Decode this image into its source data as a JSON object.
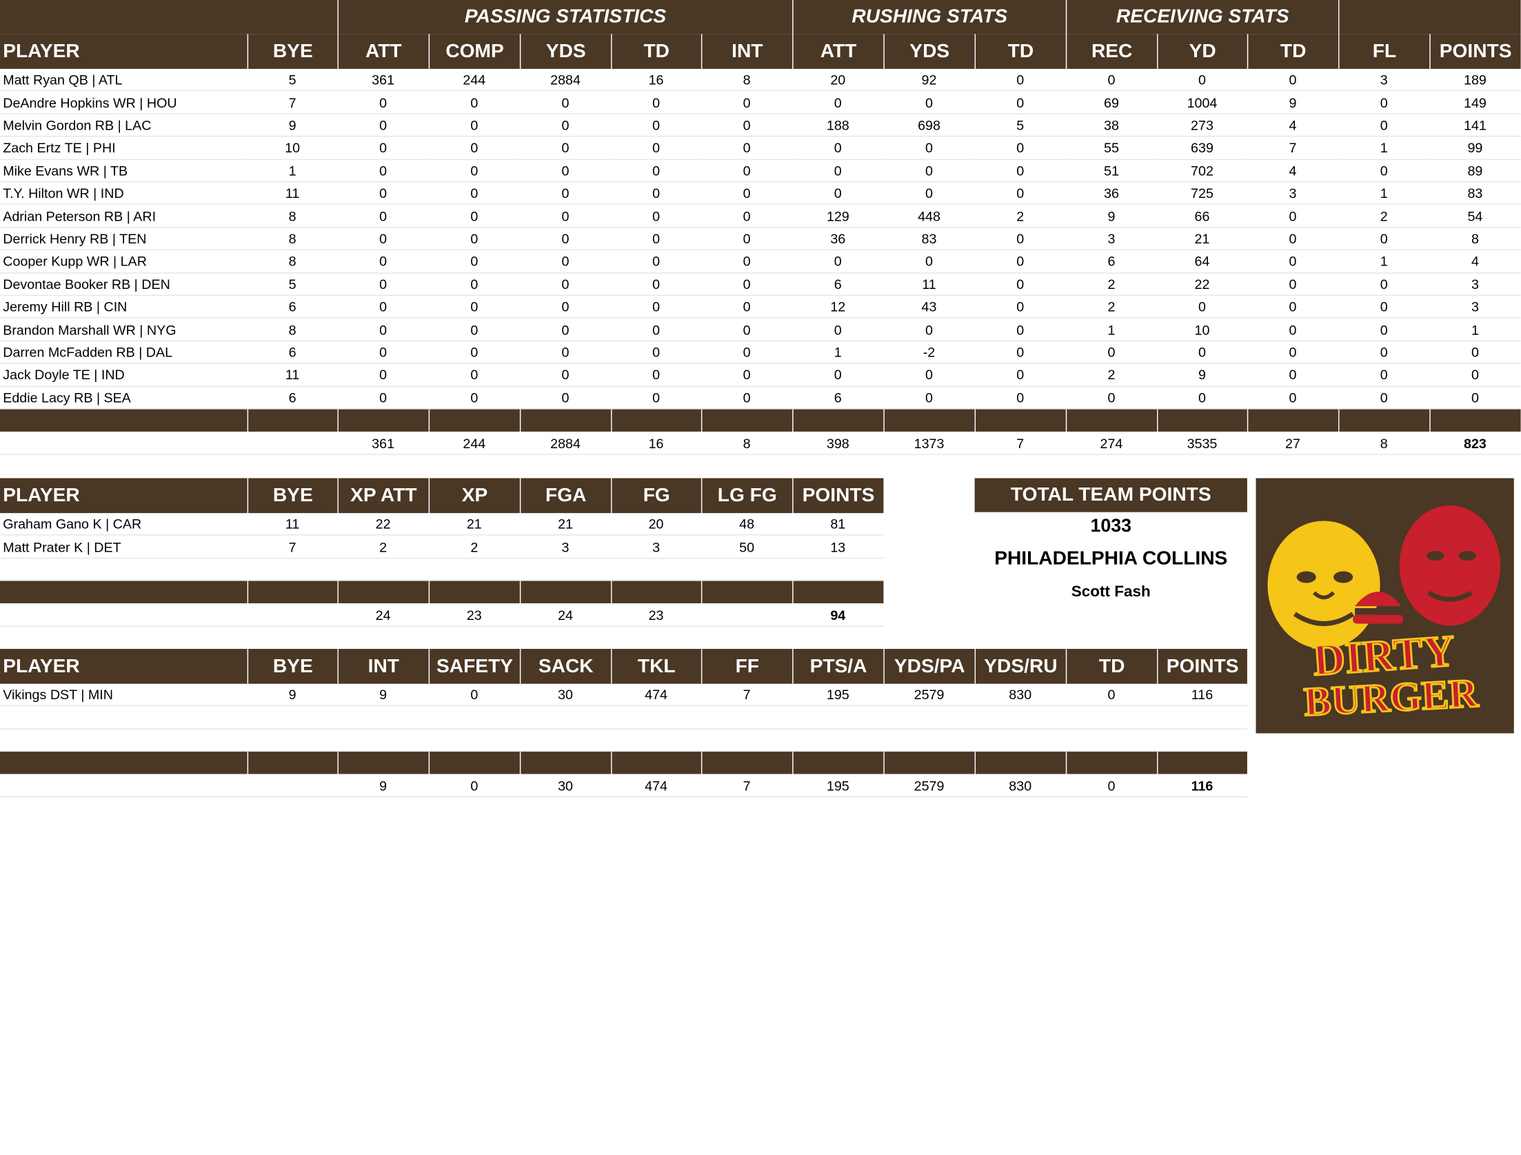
{
  "offense": {
    "groups": [
      "PASSING STATISTICS",
      "RUSHING STATS",
      "RECEIVING STATS"
    ],
    "headers": [
      "PLAYER",
      "BYE",
      "ATT",
      "COMP",
      "YDS",
      "TD",
      "INT",
      "ATT",
      "YDS",
      "TD",
      "REC",
      "YD",
      "TD",
      "FL",
      "POINTS"
    ],
    "rows": [
      [
        "Matt Ryan QB | ATL",
        "5",
        "361",
        "244",
        "2884",
        "16",
        "8",
        "20",
        "92",
        "0",
        "0",
        "0",
        "0",
        "3",
        "189"
      ],
      [
        "DeAndre Hopkins WR | HOU",
        "7",
        "0",
        "0",
        "0",
        "0",
        "0",
        "0",
        "0",
        "0",
        "69",
        "1004",
        "9",
        "0",
        "149"
      ],
      [
        "Melvin Gordon RB | LAC",
        "9",
        "0",
        "0",
        "0",
        "0",
        "0",
        "188",
        "698",
        "5",
        "38",
        "273",
        "4",
        "0",
        "141"
      ],
      [
        "Zach Ertz TE | PHI",
        "10",
        "0",
        "0",
        "0",
        "0",
        "0",
        "0",
        "0",
        "0",
        "55",
        "639",
        "7",
        "1",
        "99"
      ],
      [
        "Mike Evans WR | TB",
        "1",
        "0",
        "0",
        "0",
        "0",
        "0",
        "0",
        "0",
        "0",
        "51",
        "702",
        "4",
        "0",
        "89"
      ],
      [
        "T.Y. Hilton WR | IND",
        "11",
        "0",
        "0",
        "0",
        "0",
        "0",
        "0",
        "0",
        "0",
        "36",
        "725",
        "3",
        "1",
        "83"
      ],
      [
        "Adrian Peterson RB | ARI",
        "8",
        "0",
        "0",
        "0",
        "0",
        "0",
        "129",
        "448",
        "2",
        "9",
        "66",
        "0",
        "2",
        "54"
      ],
      [
        "Derrick Henry RB | TEN",
        "8",
        "0",
        "0",
        "0",
        "0",
        "0",
        "36",
        "83",
        "0",
        "3",
        "21",
        "0",
        "0",
        "8"
      ],
      [
        "Cooper Kupp WR | LAR",
        "8",
        "0",
        "0",
        "0",
        "0",
        "0",
        "0",
        "0",
        "0",
        "6",
        "64",
        "0",
        "1",
        "4"
      ],
      [
        "Devontae Booker RB | DEN",
        "5",
        "0",
        "0",
        "0",
        "0",
        "0",
        "6",
        "11",
        "0",
        "2",
        "22",
        "0",
        "0",
        "3"
      ],
      [
        "Jeremy Hill RB | CIN",
        "6",
        "0",
        "0",
        "0",
        "0",
        "0",
        "12",
        "43",
        "0",
        "2",
        "0",
        "0",
        "0",
        "3"
      ],
      [
        "Brandon Marshall WR | NYG",
        "8",
        "0",
        "0",
        "0",
        "0",
        "0",
        "0",
        "0",
        "0",
        "1",
        "10",
        "0",
        "0",
        "1"
      ],
      [
        "Darren McFadden RB | DAL",
        "6",
        "0",
        "0",
        "0",
        "0",
        "0",
        "1",
        "-2",
        "0",
        "0",
        "0",
        "0",
        "0",
        "0"
      ],
      [
        "Jack Doyle TE | IND",
        "11",
        "0",
        "0",
        "0",
        "0",
        "0",
        "0",
        "0",
        "0",
        "2",
        "9",
        "0",
        "0",
        "0"
      ],
      [
        "Eddie Lacy RB | SEA",
        "6",
        "0",
        "0",
        "0",
        "0",
        "0",
        "6",
        "0",
        "0",
        "0",
        "0",
        "0",
        "0",
        "0"
      ]
    ],
    "totals": [
      "",
      "",
      "361",
      "244",
      "2884",
      "16",
      "8",
      "398",
      "1373",
      "7",
      "274",
      "3535",
      "27",
      "8",
      "823"
    ]
  },
  "kickers": {
    "headers": [
      "PLAYER",
      "BYE",
      "XP ATT",
      "XP",
      "FGA",
      "FG",
      "LG FG",
      "POINTS"
    ],
    "rows": [
      [
        "Graham Gano K | CAR",
        "11",
        "22",
        "21",
        "21",
        "20",
        "48",
        "81"
      ],
      [
        "Matt Prater K | DET",
        "7",
        "2",
        "2",
        "3",
        "3",
        "50",
        "13"
      ]
    ],
    "totals": [
      "",
      "",
      "24",
      "23",
      "24",
      "23",
      "",
      "94"
    ]
  },
  "defense": {
    "headers": [
      "PLAYER",
      "BYE",
      "INT",
      "SAFETY",
      "SACK",
      "TKL",
      "FF",
      "PTS/A",
      "YDS/PA",
      "YDS/RU",
      "TD",
      "POINTS"
    ],
    "rows": [
      [
        "Vikings DST | MIN",
        "9",
        "9",
        "0",
        "30",
        "474",
        "7",
        "195",
        "2579",
        "830",
        "0",
        "116"
      ]
    ],
    "totals": [
      "",
      "",
      "9",
      "0",
      "30",
      "474",
      "7",
      "195",
      "2579",
      "830",
      "0",
      "116"
    ]
  },
  "summary": {
    "header": "TOTAL TEAM POINTS",
    "points": "1033",
    "team": "PHILADELPHIA COLLINS",
    "owner": "Scott Fash"
  },
  "logo": {
    "line1": "DIRTY",
    "line2": "BURGER",
    "bg_color": "#4a3724",
    "yellow": "#f5c518",
    "red": "#c8202c"
  },
  "colors": {
    "header_bg": "#4a3724",
    "header_text": "#ffffff"
  }
}
